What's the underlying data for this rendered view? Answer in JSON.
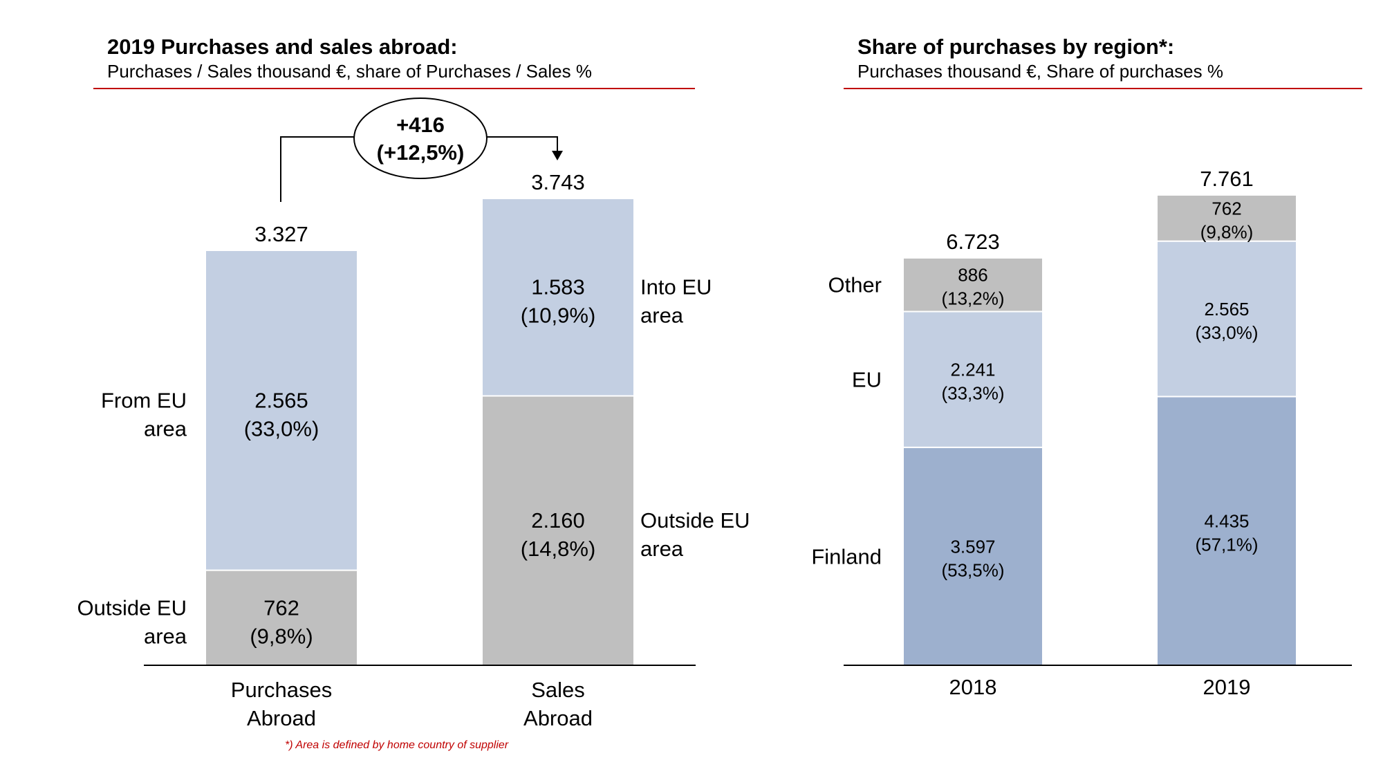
{
  "chart_data": [
    {
      "type": "bar",
      "stacked": true,
      "title": "2019 Purchases and sales abroad:",
      "subtitle": "Purchases / Sales thousand €, share of Purchases / Sales %",
      "categories": [
        "Purchases\nAbroad",
        "Sales\nAbroad"
      ],
      "totals": [
        "3.327",
        "3.743"
      ],
      "bars": [
        {
          "segments": [
            {
              "value": 762,
              "label": "762",
              "share": "(9,8%)",
              "color": "#bfbfbf",
              "side_label": "Outside EU\narea"
            },
            {
              "value": 2565,
              "label": "2.565",
              "share": "(33,0%)",
              "color": "#c3cfe2",
              "side_label": "From EU\narea"
            }
          ]
        },
        {
          "segments": [
            {
              "value": 2160,
              "label": "2.160",
              "share": "(14,8%)",
              "color": "#bfbfbf",
              "side_label": "Outside EU\narea"
            },
            {
              "value": 1583,
              "label": "1.583",
              "share": "(10,9%)",
              "color": "#c3cfe2",
              "side_label": "Into EU\narea"
            }
          ]
        }
      ],
      "change": {
        "value": "+416",
        "percent": "(+12,5%)"
      },
      "footnote": "*) Area is defined by home country of supplier"
    },
    {
      "type": "bar",
      "stacked": true,
      "title": "Share of purchases by region*:",
      "subtitle": "Purchases thousand €, Share of purchases %",
      "categories": [
        "2018",
        "2019"
      ],
      "totals": [
        "6.723",
        "7.761"
      ],
      "series_labels": [
        "Finland",
        "EU",
        "Other"
      ],
      "series_colors": [
        "#9db0ce",
        "#c3cfe2",
        "#bfbfbf"
      ],
      "bars": [
        {
          "segments": [
            {
              "value": 3597,
              "label": "3.597",
              "share": "(53,5%)"
            },
            {
              "value": 2241,
              "label": "2.241",
              "share": "(33,3%)"
            },
            {
              "value": 886,
              "label": "886",
              "share": "(13,2%)"
            }
          ]
        },
        {
          "segments": [
            {
              "value": 4435,
              "label": "4.435",
              "share": "(57,1%)"
            },
            {
              "value": 2565,
              "label": "2.565",
              "share": "(33,0%)"
            },
            {
              "value": 762,
              "label": "762",
              "share": "(9,8%)"
            }
          ]
        }
      ]
    }
  ]
}
